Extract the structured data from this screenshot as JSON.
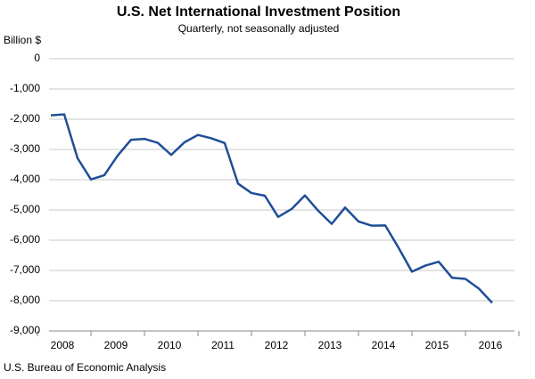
{
  "chart_data": {
    "type": "line",
    "title": "U.S. Net International Investment Position",
    "subtitle": "Quarterly, not seasonally adjusted",
    "y_label": "Billion $",
    "source": "U.S. Bureau of Economic Analysis",
    "categories": [
      null,
      "2008",
      null,
      null,
      null,
      "2009",
      null,
      null,
      null,
      "2010",
      null,
      null,
      null,
      "2011",
      null,
      null,
      null,
      "2012",
      null,
      null,
      null,
      "2013",
      null,
      null,
      null,
      "2014",
      null,
      null,
      null,
      "2015",
      null,
      null,
      null,
      "2016"
    ],
    "series": [
      {
        "name": "U.S. Net International Investment Position",
        "color": "#1f4e96",
        "values": [
          -1870,
          -1840,
          -3290,
          -3990,
          -3850,
          -3200,
          -2680,
          -2650,
          -2780,
          -3180,
          -2760,
          -2520,
          -2630,
          -2790,
          -4130,
          -4440,
          -4530,
          -5230,
          -4970,
          -4520,
          -5030,
          -5460,
          -4920,
          -5380,
          -5520,
          -5510,
          -6250,
          -7040,
          -6840,
          -6710,
          -7240,
          -7280,
          -7600,
          -8070
        ]
      }
    ],
    "ylim": [
      -9000,
      0
    ],
    "yticks": [
      0,
      {
        "value": -1000,
        "label": "-1,000"
      },
      {
        "value": -2000,
        "label": "-2,000"
      },
      {
        "value": -3000,
        "label": "-3,000"
      },
      {
        "value": -4000,
        "label": "-4,000"
      },
      {
        "value": -5000,
        "label": "-5,000"
      },
      {
        "value": -6000,
        "label": "-6,000"
      },
      {
        "value": -7000,
        "label": "-7,000"
      },
      {
        "value": -8000,
        "label": "-8,000"
      },
      {
        "value": -9000,
        "label": "-9,000"
      }
    ],
    "grid": true
  }
}
